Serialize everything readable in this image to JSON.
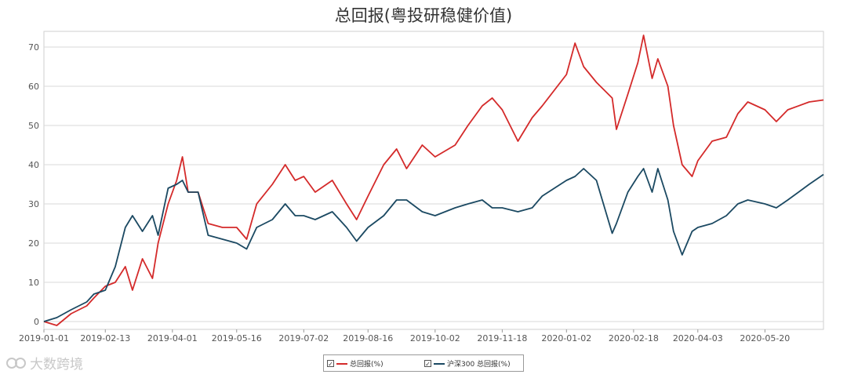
{
  "chart_data": {
    "type": "line",
    "title": "总回报(粤投研稳健价值)",
    "xlabel": "",
    "ylabel": "",
    "ylim": [
      -2,
      74
    ],
    "yticks": [
      0,
      10,
      20,
      30,
      40,
      50,
      60,
      70
    ],
    "xticks": [
      "2019-01-01",
      "2019-02-13",
      "2019-04-01",
      "2019-05-16",
      "2019-07-02",
      "2019-08-16",
      "2019-10-02",
      "2019-11-18",
      "2020-01-02",
      "2020-02-18",
      "2020-04-03",
      "2020-05-20"
    ],
    "legend_position": "bottom",
    "grid": true,
    "series": [
      {
        "name": "总回报(%)",
        "color": "#d42a2a",
        "points": [
          [
            "2019-01-01",
            0
          ],
          [
            "2019-01-10",
            -1
          ],
          [
            "2019-01-20",
            2
          ],
          [
            "2019-01-31",
            4
          ],
          [
            "2019-02-05",
            6
          ],
          [
            "2019-02-13",
            9
          ],
          [
            "2019-02-20",
            10
          ],
          [
            "2019-02-27",
            14
          ],
          [
            "2019-03-04",
            8
          ],
          [
            "2019-03-11",
            16
          ],
          [
            "2019-03-18",
            11
          ],
          [
            "2019-03-22",
            20
          ],
          [
            "2019-03-29",
            30
          ],
          [
            "2019-04-04",
            36
          ],
          [
            "2019-04-08",
            42
          ],
          [
            "2019-04-12",
            33
          ],
          [
            "2019-04-19",
            33
          ],
          [
            "2019-04-26",
            25
          ],
          [
            "2019-05-06",
            24
          ],
          [
            "2019-05-16",
            24
          ],
          [
            "2019-05-23",
            21
          ],
          [
            "2019-05-30",
            30
          ],
          [
            "2019-06-10",
            35
          ],
          [
            "2019-06-19",
            40
          ],
          [
            "2019-06-26",
            36
          ],
          [
            "2019-07-02",
            37
          ],
          [
            "2019-07-10",
            33
          ],
          [
            "2019-07-22",
            36
          ],
          [
            "2019-08-01",
            30
          ],
          [
            "2019-08-08",
            26
          ],
          [
            "2019-08-16",
            32
          ],
          [
            "2019-08-27",
            40
          ],
          [
            "2019-09-05",
            44
          ],
          [
            "2019-09-12",
            39
          ],
          [
            "2019-09-23",
            45
          ],
          [
            "2019-10-02",
            42
          ],
          [
            "2019-10-16",
            45
          ],
          [
            "2019-10-25",
            50
          ],
          [
            "2019-11-04",
            55
          ],
          [
            "2019-11-11",
            57
          ],
          [
            "2019-11-18",
            54
          ],
          [
            "2019-11-29",
            46
          ],
          [
            "2019-12-09",
            52
          ],
          [
            "2019-12-16",
            55
          ],
          [
            "2020-01-02",
            63
          ],
          [
            "2020-01-08",
            71
          ],
          [
            "2020-01-14",
            65
          ],
          [
            "2020-01-23",
            61
          ],
          [
            "2020-02-03",
            57
          ],
          [
            "2020-02-06",
            49
          ],
          [
            "2020-02-14",
            58
          ],
          [
            "2020-02-21",
            66
          ],
          [
            "2020-02-25",
            73
          ],
          [
            "2020-03-02",
            62
          ],
          [
            "2020-03-06",
            67
          ],
          [
            "2020-03-13",
            60
          ],
          [
            "2020-03-17",
            50
          ],
          [
            "2020-03-23",
            40
          ],
          [
            "2020-03-30",
            37
          ],
          [
            "2020-04-03",
            41
          ],
          [
            "2020-04-13",
            46
          ],
          [
            "2020-04-23",
            47
          ],
          [
            "2020-05-01",
            53
          ],
          [
            "2020-05-08",
            56
          ],
          [
            "2020-05-20",
            54
          ],
          [
            "2020-05-28",
            51
          ],
          [
            "2020-06-05",
            54
          ],
          [
            "2020-06-20",
            56
          ],
          [
            "2020-06-30",
            56.5
          ]
        ]
      },
      {
        "name": "沪深300 总回报(%)",
        "color": "#1b4962",
        "points": [
          [
            "2019-01-01",
            0
          ],
          [
            "2019-01-10",
            1
          ],
          [
            "2019-01-20",
            3
          ],
          [
            "2019-01-31",
            5
          ],
          [
            "2019-02-05",
            7
          ],
          [
            "2019-02-13",
            8
          ],
          [
            "2019-02-20",
            14
          ],
          [
            "2019-02-27",
            24
          ],
          [
            "2019-03-04",
            27
          ],
          [
            "2019-03-11",
            23
          ],
          [
            "2019-03-18",
            27
          ],
          [
            "2019-03-22",
            22
          ],
          [
            "2019-03-29",
            34
          ],
          [
            "2019-04-04",
            35
          ],
          [
            "2019-04-08",
            36
          ],
          [
            "2019-04-12",
            33
          ],
          [
            "2019-04-19",
            33
          ],
          [
            "2019-04-26",
            22
          ],
          [
            "2019-05-06",
            21
          ],
          [
            "2019-05-16",
            20
          ],
          [
            "2019-05-23",
            18.5
          ],
          [
            "2019-05-30",
            24
          ],
          [
            "2019-06-10",
            26
          ],
          [
            "2019-06-19",
            30
          ],
          [
            "2019-06-26",
            27
          ],
          [
            "2019-07-02",
            27
          ],
          [
            "2019-07-10",
            26
          ],
          [
            "2019-07-22",
            28
          ],
          [
            "2019-08-01",
            24
          ],
          [
            "2019-08-08",
            20.5
          ],
          [
            "2019-08-16",
            24
          ],
          [
            "2019-08-27",
            27
          ],
          [
            "2019-09-05",
            31
          ],
          [
            "2019-09-12",
            31
          ],
          [
            "2019-09-23",
            28
          ],
          [
            "2019-10-02",
            27
          ],
          [
            "2019-10-16",
            29
          ],
          [
            "2019-10-25",
            30
          ],
          [
            "2019-11-04",
            31
          ],
          [
            "2019-11-11",
            29
          ],
          [
            "2019-11-18",
            29
          ],
          [
            "2019-11-29",
            28
          ],
          [
            "2019-12-09",
            29
          ],
          [
            "2019-12-16",
            32
          ],
          [
            "2020-01-02",
            36
          ],
          [
            "2020-01-08",
            37
          ],
          [
            "2020-01-14",
            39
          ],
          [
            "2020-01-23",
            36
          ],
          [
            "2020-02-03",
            22.5
          ],
          [
            "2020-02-06",
            25
          ],
          [
            "2020-02-14",
            33
          ],
          [
            "2020-02-21",
            37
          ],
          [
            "2020-02-25",
            39
          ],
          [
            "2020-03-02",
            33
          ],
          [
            "2020-03-06",
            39
          ],
          [
            "2020-03-13",
            31
          ],
          [
            "2020-03-17",
            23
          ],
          [
            "2020-03-23",
            17
          ],
          [
            "2020-03-30",
            23
          ],
          [
            "2020-04-03",
            24
          ],
          [
            "2020-04-13",
            25
          ],
          [
            "2020-04-23",
            27
          ],
          [
            "2020-05-01",
            30
          ],
          [
            "2020-05-08",
            31
          ],
          [
            "2020-05-20",
            30
          ],
          [
            "2020-05-28",
            29
          ],
          [
            "2020-06-05",
            31
          ],
          [
            "2020-06-20",
            35
          ],
          [
            "2020-06-30",
            37.5
          ]
        ]
      }
    ]
  },
  "legend": {
    "item1": "总回报(%)",
    "item2": "沪深300 总回报(%)",
    "check": "✓"
  },
  "watermark": "大数跨境"
}
